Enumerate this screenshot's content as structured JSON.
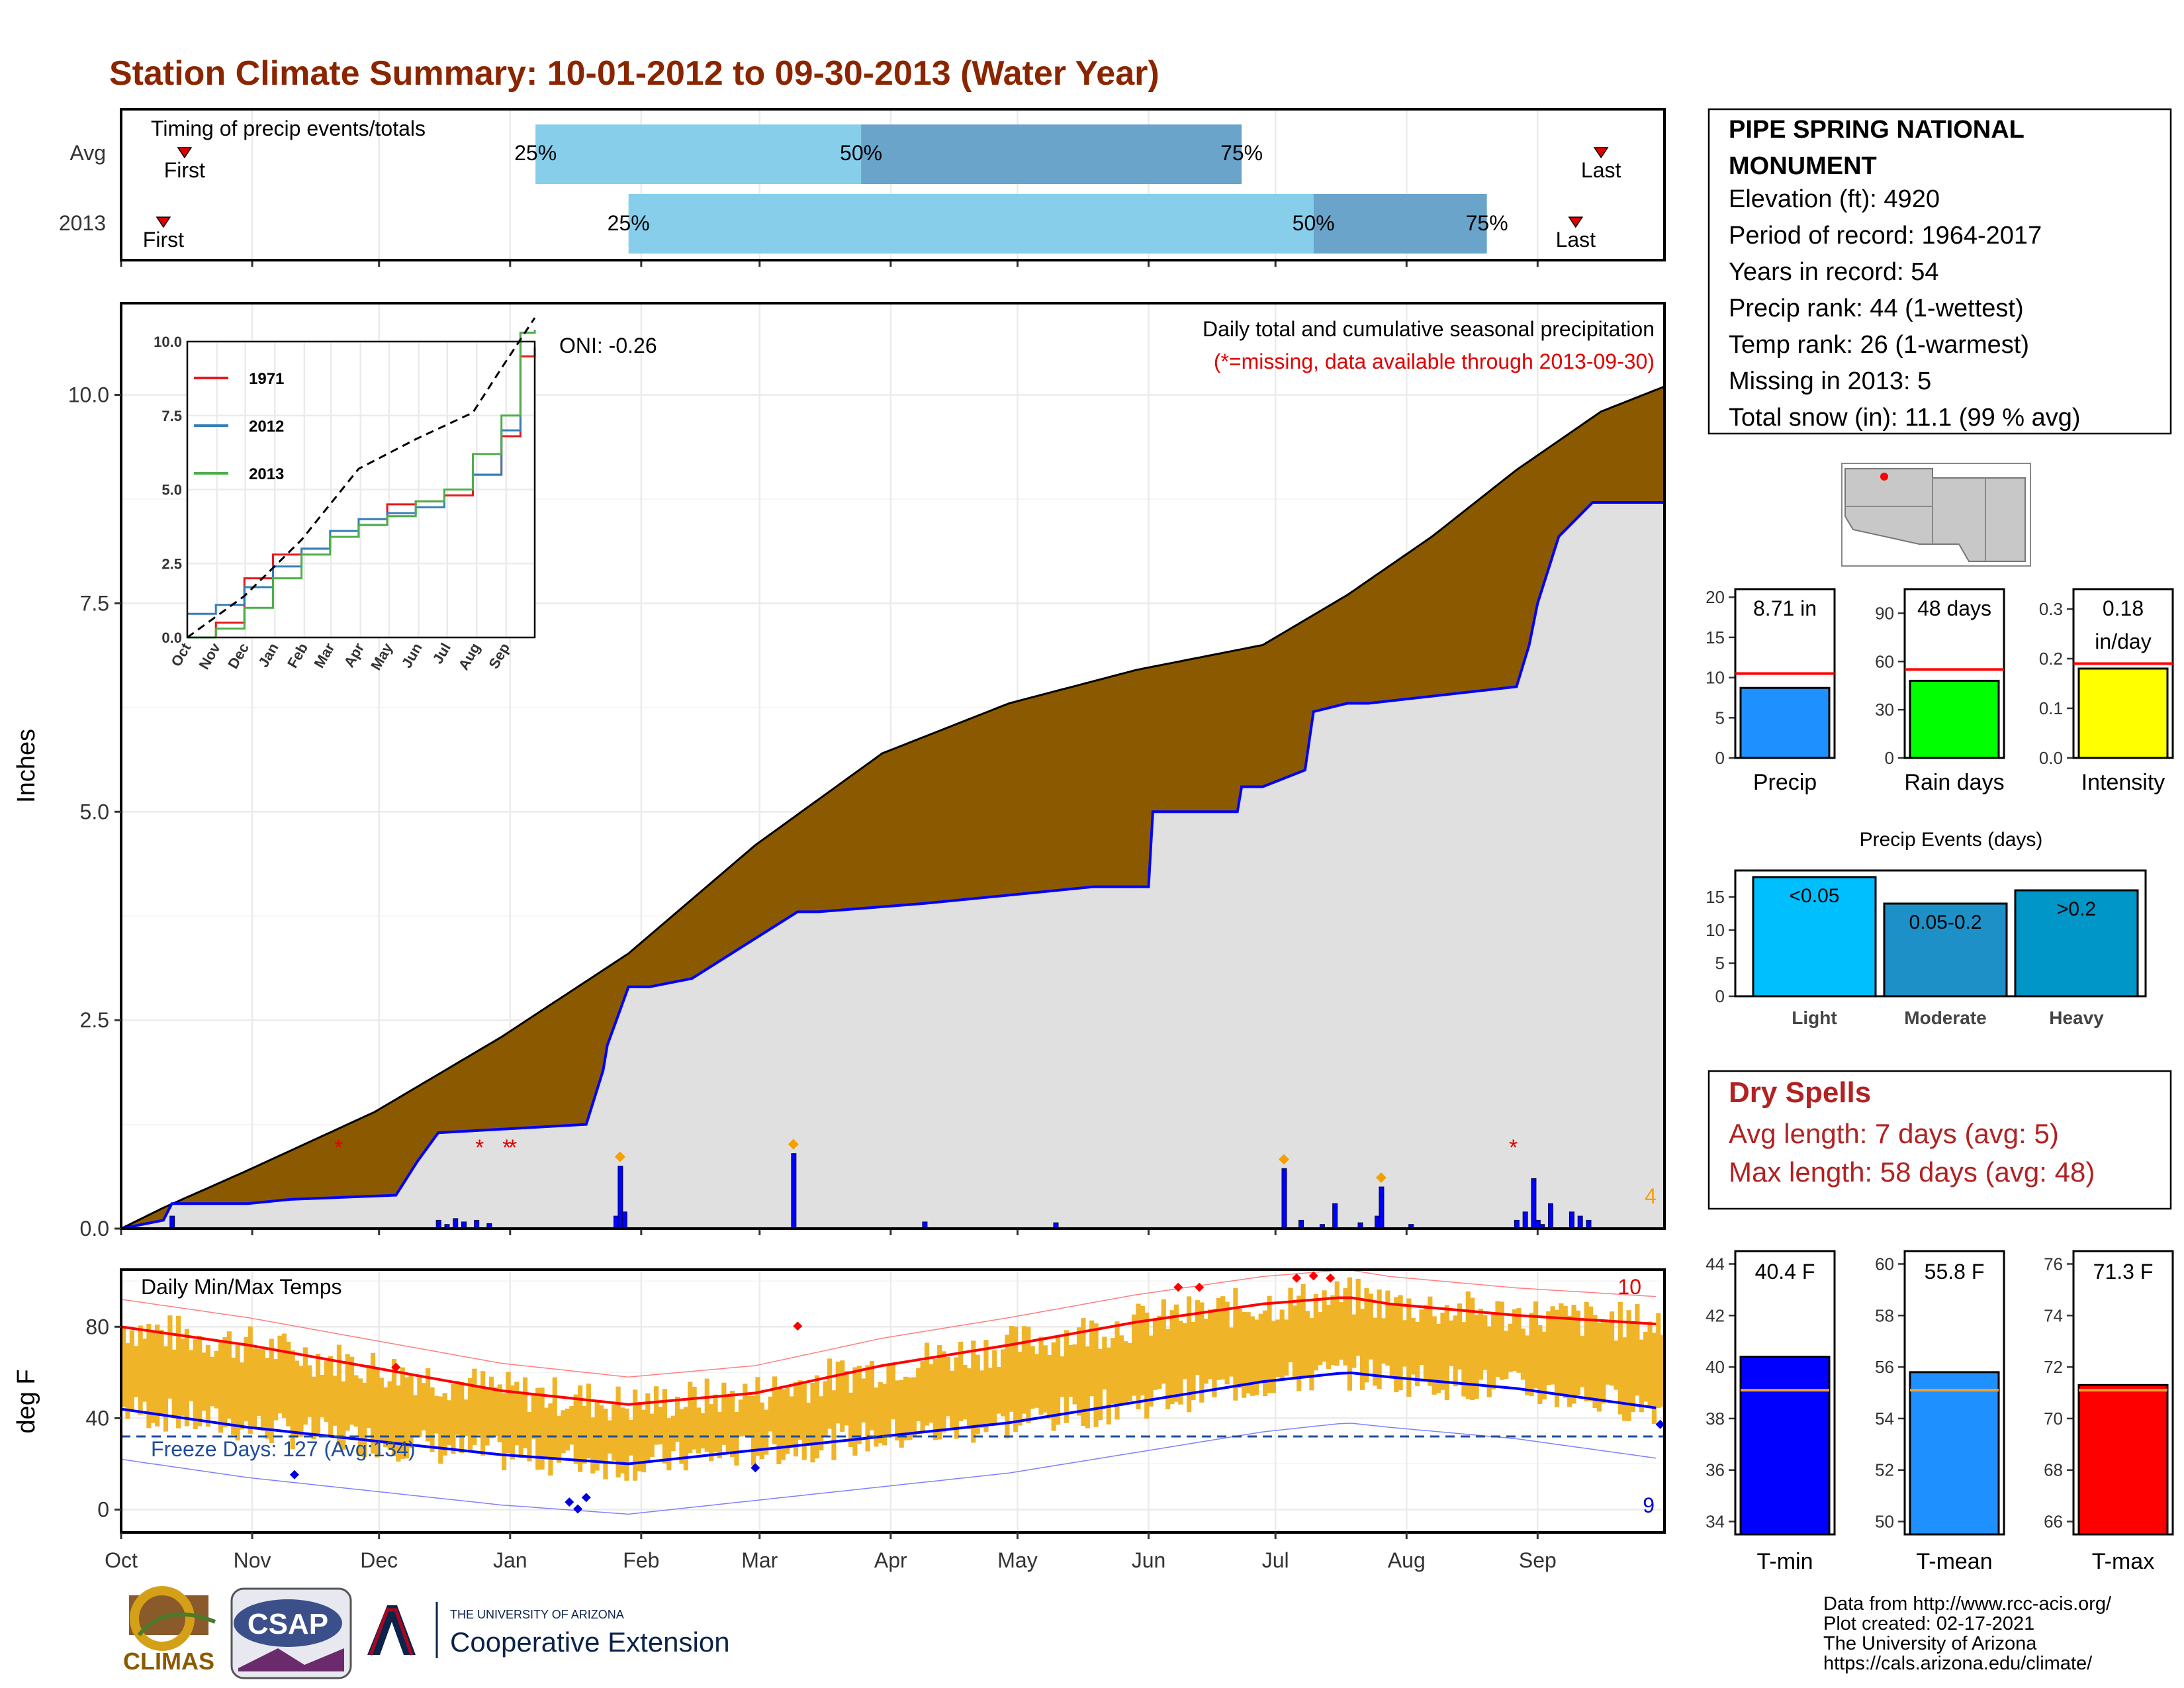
{
  "title": "Station Climate Summary: 10-01-2012 to 09-30-2013 (Water Year)",
  "colors": {
    "title": "#8b2500",
    "quartile_light": "#87ceeb",
    "quartile_dark": "#6aa4cb",
    "brown_fill": "#8b5a00",
    "grey_fill": "#e0e0e0",
    "cumulative_line": "#0000ff",
    "temp_bars": "#f0b429",
    "tmax_avg": "#ff0000",
    "tmin_avg": "#0000ff"
  },
  "timing_panel": {
    "label": "Timing of precip events/totals",
    "rows": [
      {
        "name": "Avg",
        "first_label": "First",
        "last_label": "Last",
        "q25": "25%",
        "q50": "50%",
        "q75": "75%",
        "first_day": 15,
        "q25_day": 98,
        "q50_day": 175,
        "q75_day": 265,
        "last_day": 350
      },
      {
        "name": "2013",
        "first_label": "First",
        "last_label": "Last",
        "q25": "25%",
        "q50": "50%",
        "q75": "75%",
        "first_day": 10,
        "q25_day": 120,
        "q50_day": 282,
        "q75_day": 323,
        "last_day": 344
      }
    ]
  },
  "station": {
    "name_line1": "PIPE SPRING NATIONAL",
    "name_line2": "MONUMENT",
    "elevation": "Elevation (ft): 4920",
    "period": "Period of record: 1964-2017",
    "years": "Years in record: 54",
    "precip_rank": "Precip rank: 44 (1-wettest)",
    "temp_rank": "Temp rank: 26 (1-warmest)",
    "missing": "Missing in 2013: 5",
    "snow": "Total snow (in): 11.1 (99 % avg)"
  },
  "precip_panel": {
    "title": "Daily total and cumulative seasonal precipitation",
    "subtitle": "(*=missing, data available through 2013-09-30)",
    "oni": "ONI: -0.26",
    "ylabel": "Inches",
    "yticks": [
      "0.0",
      "2.5",
      "5.0",
      "7.5",
      "10.0"
    ],
    "corner_count": "4",
    "months": [
      "Oct",
      "Nov",
      "Dec",
      "Jan",
      "Feb",
      "Mar",
      "Apr",
      "May",
      "Jun",
      "Jul",
      "Aug",
      "Sep"
    ]
  },
  "inset": {
    "yticks": [
      "0.0",
      "2.5",
      "5.0",
      "7.5",
      "10.0"
    ],
    "xticks": [
      "Oct",
      "Nov",
      "Dec",
      "Jan",
      "Feb",
      "Mar",
      "Apr",
      "May",
      "Jun",
      "Jul",
      "Aug",
      "Sep"
    ],
    "legend": [
      "1971",
      "2012",
      "2013"
    ]
  },
  "temp_panel": {
    "title": "Daily Min/Max Temps",
    "ylabel": "deg F",
    "yticks": [
      "0",
      "40",
      "80"
    ],
    "freeze_label": "Freeze Days: 127 (Avg:134)",
    "max_count": "10",
    "min_count": "9",
    "months": [
      "Oct",
      "Nov",
      "Dec",
      "Jan",
      "Feb",
      "Mar",
      "Apr",
      "May",
      "Jun",
      "Jul",
      "Aug",
      "Sep"
    ]
  },
  "bar_summary": {
    "precip": {
      "label": "Precip",
      "value_text": "8.71 in",
      "yticks": [
        "0",
        "5",
        "10",
        "15",
        "20"
      ]
    },
    "rain_days": {
      "label": "Rain days",
      "value_text": "48 days",
      "yticks": [
        "0",
        "30",
        "60",
        "90"
      ]
    },
    "intensity": {
      "label": "Intensity",
      "value_text_1": "0.18",
      "value_text_2": "in/day",
      "yticks": [
        "0.0",
        "0.1",
        "0.2",
        "0.3"
      ]
    }
  },
  "events": {
    "title": "Precip Events (days)",
    "yticks": [
      "0",
      "5",
      "10",
      "15"
    ],
    "bars": [
      {
        "label": "<0.05",
        "cat": "Light"
      },
      {
        "label": "0.05-0.2",
        "cat": "Moderate"
      },
      {
        "label": ">0.2",
        "cat": "Heavy"
      }
    ]
  },
  "dry_spells": {
    "title": "Dry Spells",
    "avg": "Avg length: 7 days (avg: 5)",
    "max": "Max length: 58 days (avg: 48)"
  },
  "temp_summary": {
    "tmin": {
      "label": "T-min",
      "value_text": "40.4 F",
      "yticks": [
        "34",
        "36",
        "38",
        "40",
        "42",
        "44"
      ]
    },
    "tmean": {
      "label": "T-mean",
      "value_text": "55.8 F",
      "yticks": [
        "50",
        "52",
        "54",
        "56",
        "58",
        "60"
      ]
    },
    "tmax": {
      "label": "T-max",
      "value_text": "71.3 F",
      "yticks": [
        "66",
        "68",
        "70",
        "72",
        "74",
        "76"
      ]
    }
  },
  "footer": {
    "line1": "Data from http://www.rcc-acis.org/",
    "line2": "Plot created: 02-17-2021",
    "line3": "The University of Arizona",
    "line4": "https://cals.arizona.edu/climate/",
    "logo1": "CLIMAS",
    "logo2": "CSAP",
    "logo3_small": "THE UNIVERSITY OF ARIZONA",
    "logo3_big": "Cooperative Extension"
  },
  "chart_data": [
    {
      "type": "area",
      "title": "Daily total and cumulative seasonal precipitation",
      "ylabel": "Inches",
      "ylim": [
        0,
        11.1
      ],
      "xlim_days": [
        0,
        365
      ],
      "series": [
        {
          "name": "cumulative_avg",
          "x": [
            0,
            10,
            30,
            60,
            90,
            120,
            150,
            180,
            210,
            240,
            270,
            290,
            310,
            330,
            350,
            365
          ],
          "y": [
            0,
            0.25,
            0.7,
            1.4,
            2.3,
            3.3,
            4.6,
            5.7,
            6.3,
            6.7,
            7.0,
            7.6,
            8.3,
            9.1,
            9.8,
            10.1
          ]
        },
        {
          "name": "cumulative_2013",
          "x": [
            0,
            10,
            12,
            30,
            40,
            65,
            70,
            75,
            110,
            114,
            115,
            120,
            125,
            135,
            160,
            165,
            190,
            210,
            230,
            243,
            244,
            264,
            265,
            270,
            280,
            282,
            290,
            295,
            330,
            333,
            335,
            340,
            348,
            365
          ],
          "y": [
            0,
            0.1,
            0.3,
            0.3,
            0.35,
            0.4,
            0.8,
            1.15,
            1.25,
            1.9,
            2.2,
            2.9,
            2.9,
            3.0,
            3.8,
            3.8,
            3.9,
            4.0,
            4.1,
            4.1,
            5.0,
            5.0,
            5.3,
            5.3,
            5.5,
            6.2,
            6.3,
            6.3,
            6.5,
            7.0,
            7.5,
            8.3,
            8.71,
            8.71
          ]
        },
        {
          "name": "daily_2013",
          "x": [
            12,
            75,
            77,
            79,
            81,
            84,
            87,
            117,
            118,
            119,
            159,
            190,
            221,
            275,
            279,
            284,
            287,
            293,
            297,
            298,
            305,
            330,
            332,
            334,
            335,
            336,
            338,
            343,
            345,
            347
          ],
          "y": [
            0.15,
            0.1,
            0.05,
            0.12,
            0.08,
            0.1,
            0.06,
            0.15,
            0.75,
            0.2,
            0.9,
            0.08,
            0.07,
            0.72,
            0.1,
            0.05,
            0.3,
            0.07,
            0.15,
            0.5,
            0.05,
            0.1,
            0.2,
            0.6,
            0.1,
            0.05,
            0.3,
            0.2,
            0.15,
            0.1
          ]
        }
      ]
    },
    {
      "type": "line",
      "title": "",
      "inset": true,
      "ylim": [
        0,
        10.0
      ],
      "series": [
        {
          "name": "1971",
          "x": [
            0,
            30,
            60,
            90,
            120,
            150,
            180,
            210,
            240,
            270,
            300,
            330,
            350,
            365
          ],
          "y": [
            0,
            0.5,
            2.0,
            2.8,
            3.0,
            3.4,
            3.8,
            4.5,
            4.6,
            4.8,
            5.5,
            6.8,
            9.5,
            9.8
          ]
        },
        {
          "name": "2012",
          "x": [
            0,
            30,
            60,
            90,
            120,
            150,
            180,
            210,
            240,
            270,
            300,
            330,
            350,
            365
          ],
          "y": [
            0.8,
            1.1,
            1.7,
            2.4,
            3.0,
            3.6,
            4.0,
            4.2,
            4.4,
            5.0,
            5.5,
            7.0,
            10.3,
            10.4
          ]
        },
        {
          "name": "2013",
          "x": [
            0,
            30,
            60,
            90,
            120,
            150,
            180,
            210,
            240,
            270,
            300,
            330,
            350,
            365
          ],
          "y": [
            0,
            0.3,
            1.0,
            2.0,
            2.8,
            3.4,
            3.8,
            4.1,
            4.6,
            5.0,
            6.2,
            7.5,
            10.3,
            10.4
          ]
        },
        {
          "name": "avg",
          "x": [
            0,
            60,
            120,
            180,
            240,
            300,
            330,
            365
          ],
          "y": [
            0,
            1.4,
            3.3,
            5.7,
            6.7,
            7.6,
            9.1,
            10.8
          ]
        }
      ]
    },
    {
      "type": "line",
      "title": "Daily Min/Max Temps",
      "ylabel": "deg F",
      "ylim": [
        -10,
        105
      ],
      "series": [
        {
          "name": "tmax_avg",
          "x": [
            0,
            30,
            60,
            90,
            120,
            150,
            180,
            210,
            240,
            270,
            290,
            300,
            330,
            365
          ],
          "y": [
            80,
            72,
            62,
            52,
            46,
            51,
            63,
            72,
            82,
            90,
            93,
            90,
            85,
            81
          ]
        },
        {
          "name": "tmin_avg",
          "x": [
            0,
            30,
            60,
            90,
            120,
            150,
            180,
            210,
            240,
            270,
            290,
            300,
            330,
            365
          ],
          "y": [
            44,
            36,
            30,
            24,
            20,
            26,
            32,
            38,
            47,
            56,
            60,
            58,
            53,
            44
          ]
        },
        {
          "name": "freeze_line",
          "x": [
            0,
            365
          ],
          "y": [
            32,
            32
          ]
        }
      ]
    },
    {
      "type": "bar",
      "categories": [
        "Precip",
        "Rain days",
        "Intensity"
      ],
      "values": [
        8.71,
        48,
        0.18
      ],
      "averages": [
        10.5,
        55,
        0.19
      ]
    },
    {
      "type": "bar",
      "title": "Precip Events (days)",
      "categories": [
        "Light",
        "Moderate",
        "Heavy"
      ],
      "values": [
        18,
        14,
        16
      ]
    },
    {
      "type": "bar",
      "categories": [
        "T-min",
        "T-mean",
        "T-max"
      ],
      "values": [
        40.4,
        55.8,
        71.3
      ],
      "averages": [
        39.1,
        55.1,
        71.1
      ]
    }
  ]
}
